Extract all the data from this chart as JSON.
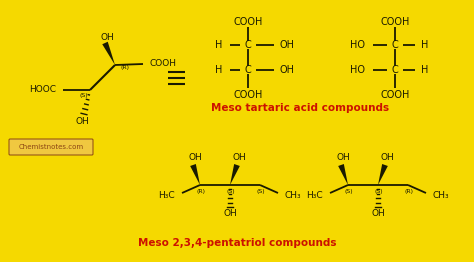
{
  "bg_color": "#F5D900",
  "text_color_black": "#1a1a00",
  "text_color_red": "#CC1100",
  "watermark_text": "Chemistnotes.com",
  "watermark_color": "#8B4513",
  "watermark_bg": "#F0C840",
  "label_tartaric": "Meso tartaric acid compounds",
  "label_pentatriol": "Meso 2,3,4-pentatriol compounds"
}
